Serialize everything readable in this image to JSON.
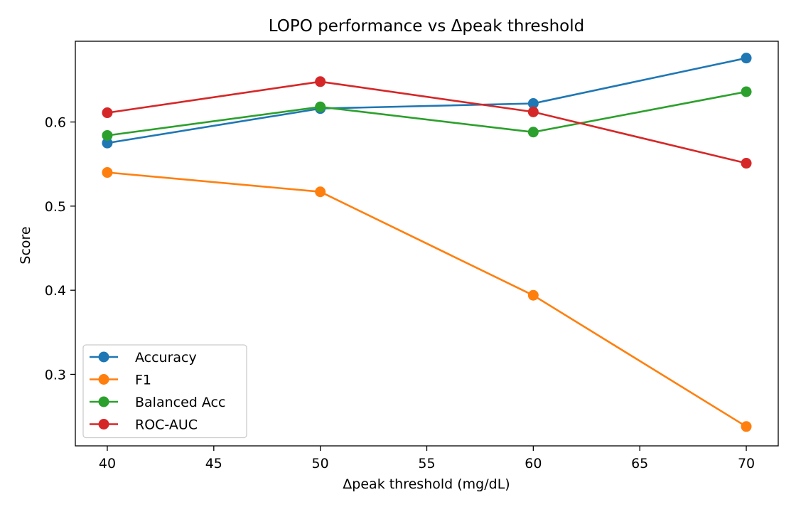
{
  "chart_data": {
    "type": "line",
    "title": "LOPO performance vs Δpeak threshold",
    "xlabel": "Δpeak threshold (mg/dL)",
    "ylabel": "Score",
    "x": [
      40,
      50,
      60,
      70
    ],
    "xlim": [
      38.5,
      71.5
    ],
    "ylim": [
      0.215,
      0.696
    ],
    "xticks": [
      40,
      45,
      50,
      55,
      60,
      65,
      70
    ],
    "yticks": [
      0.3,
      0.4,
      0.5,
      0.6
    ],
    "grid": false,
    "legend_position": "lower-left",
    "series": [
      {
        "name": "Accuracy",
        "color": "#1f77b4",
        "values": [
          0.575,
          0.616,
          0.622,
          0.676
        ]
      },
      {
        "name": "F1",
        "color": "#ff7f0e",
        "values": [
          0.54,
          0.517,
          0.394,
          0.238
        ]
      },
      {
        "name": "Balanced Acc",
        "color": "#2ca02c",
        "values": [
          0.584,
          0.618,
          0.588,
          0.636
        ]
      },
      {
        "name": "ROC-AUC",
        "color": "#d62728",
        "values": [
          0.611,
          0.648,
          0.612,
          0.551
        ]
      }
    ]
  }
}
